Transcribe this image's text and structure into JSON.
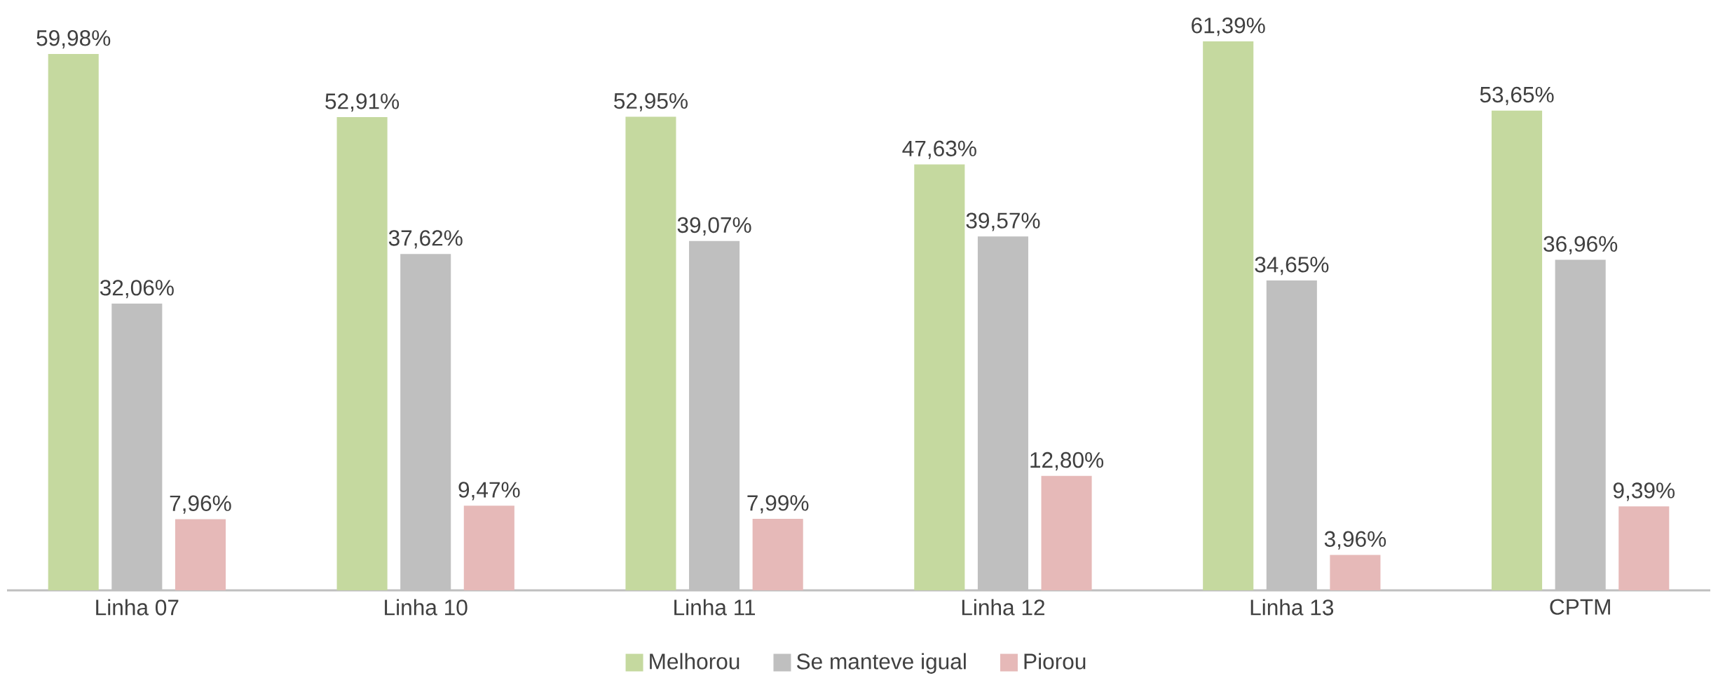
{
  "chart_data": {
    "type": "bar",
    "categories": [
      "Linha 07",
      "Linha 10",
      "Linha 11",
      "Linha 12",
      "Linha 13",
      "CPTM"
    ],
    "series": [
      {
        "name": "Melhorou",
        "color": "#c5d99f",
        "values": [
          59.98,
          52.91,
          52.95,
          47.63,
          61.39,
          53.65
        ],
        "value_labels": [
          "59,98%",
          "52,91%",
          "52,95%",
          "47,63%",
          "61,39%",
          "53,65%"
        ]
      },
      {
        "name": "Se manteve igual",
        "color": "#bfbfbf",
        "values": [
          32.06,
          37.62,
          39.07,
          39.57,
          34.65,
          36.96
        ],
        "value_labels": [
          "32,06%",
          "37,62%",
          "39,07%",
          "39,57%",
          "34,65%",
          "36,96%"
        ]
      },
      {
        "name": "Piorou",
        "color": "#e6b9b8",
        "values": [
          7.96,
          9.47,
          7.99,
          12.8,
          3.96,
          9.39
        ],
        "value_labels": [
          "7,96%",
          "9,47%",
          "7,99%",
          "12,80%",
          "3,96%",
          "9,39%"
        ]
      }
    ],
    "legend": "bottom"
  }
}
